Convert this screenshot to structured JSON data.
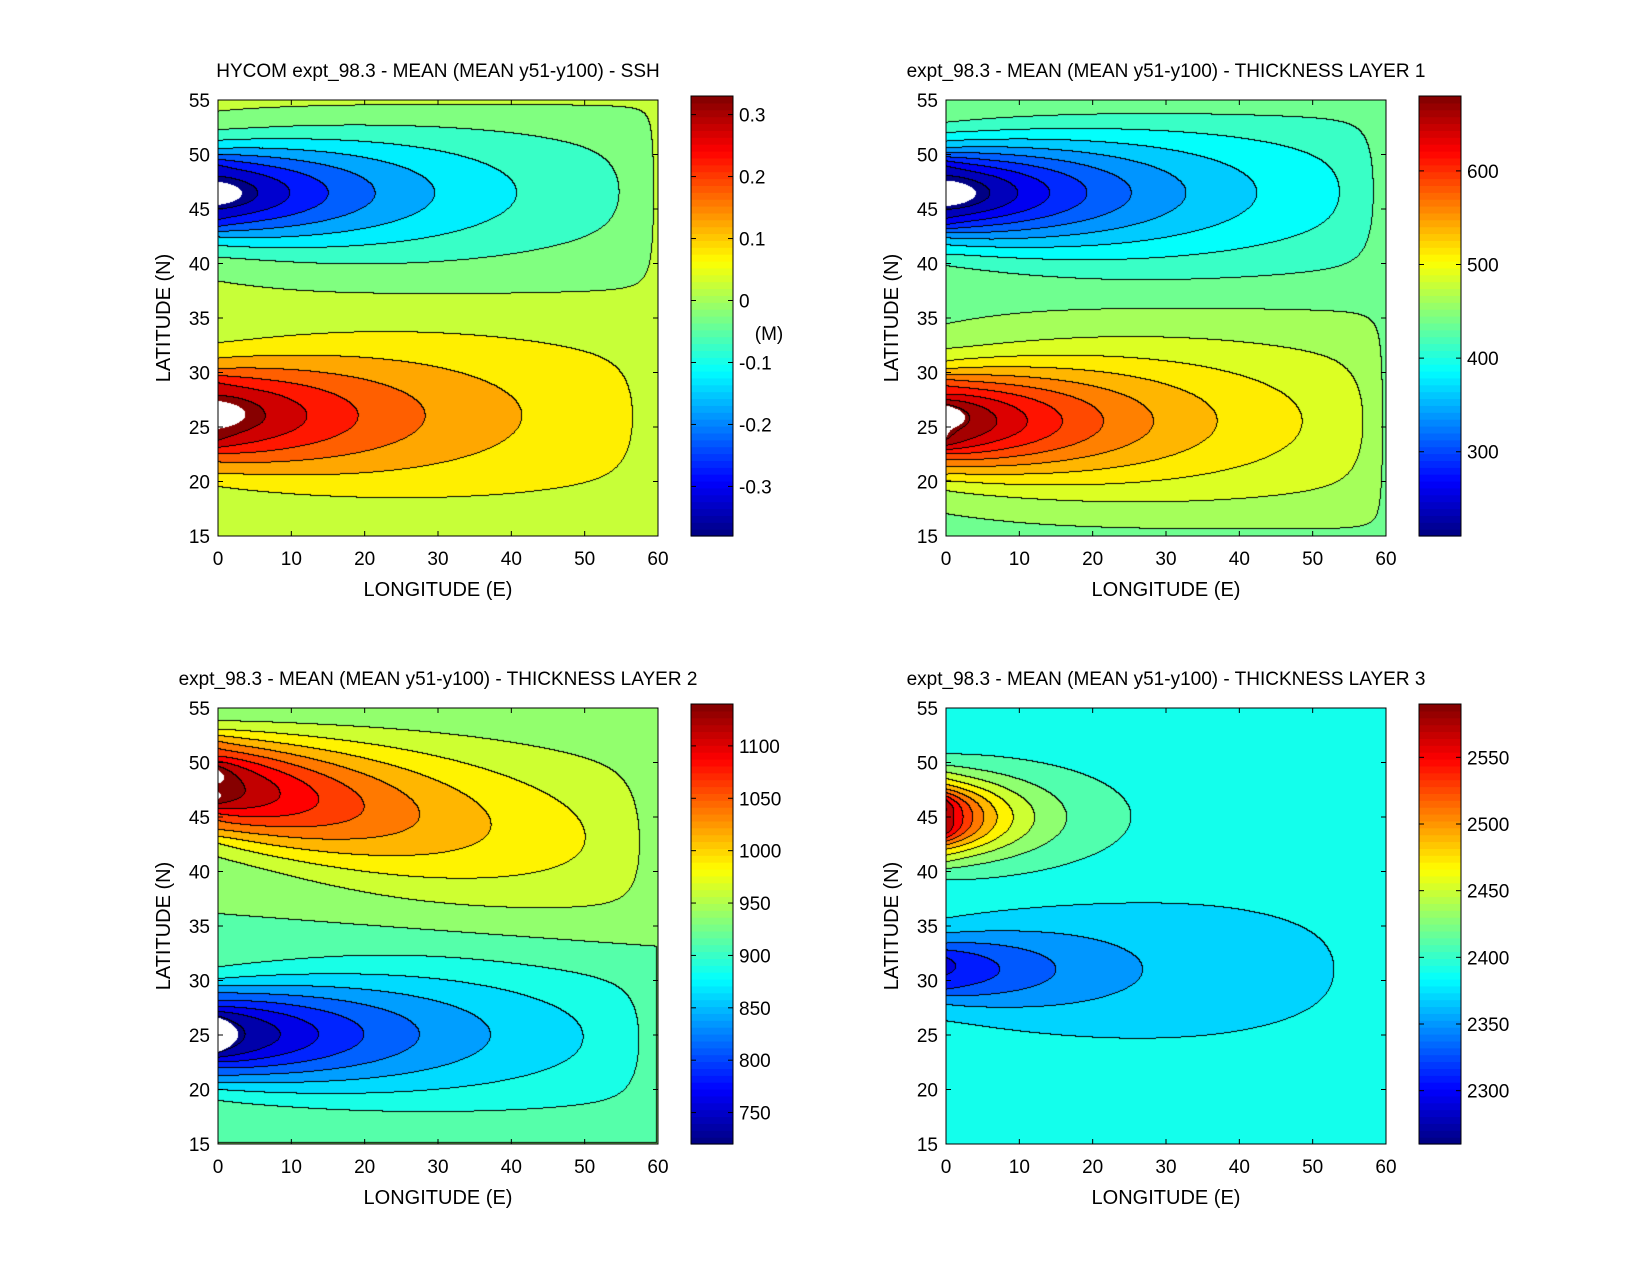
{
  "chart_data": [
    {
      "type": "heatmap",
      "subtype": "filled-contour",
      "title": "HYCOM expt_98.3 - MEAN (MEAN y51-y100) - SSH",
      "xlabel": "LONGITUDE (E)",
      "ylabel": "LATITUDE (N)",
      "xlim": [
        0,
        60
      ],
      "ylim": [
        15,
        55
      ],
      "xticks": [
        "0",
        "10",
        "20",
        "30",
        "40",
        "50",
        "60"
      ],
      "yticks": [
        "15",
        "20",
        "25",
        "30",
        "35",
        "40",
        "45",
        "50",
        "55"
      ],
      "colorbar": {
        "label": "(M)",
        "range": [
          -0.38,
          0.33
        ],
        "ticks": [
          -0.3,
          -0.2,
          -0.1,
          0,
          0.1,
          0.2,
          0.3
        ],
        "tick_labels": [
          "-0.3",
          "-0.2",
          "-0.1",
          "0",
          "0.1",
          "0.2",
          "0.3"
        ]
      },
      "contour_interval": 0.05,
      "field": {
        "background": 0.01,
        "positive_center_lat": 26,
        "positive_amplitude": 0.36,
        "negative_center_lat": 46.5,
        "negative_amplitude": -0.43,
        "east_decay": 30
      }
    },
    {
      "type": "heatmap",
      "subtype": "filled-contour",
      "title": "expt_98.3 - MEAN (MEAN y51-y100) - THICKNESS LAYER 1",
      "xlabel": "LONGITUDE (E)",
      "ylabel": "LATITUDE (N)",
      "xlim": [
        0,
        60
      ],
      "ylim": [
        15,
        55
      ],
      "xticks": [
        "0",
        "10",
        "20",
        "30",
        "40",
        "50",
        "60"
      ],
      "yticks": [
        "15",
        "20",
        "25",
        "30",
        "35",
        "40",
        "45",
        "50",
        "55"
      ],
      "colorbar": {
        "label": "",
        "range": [
          210,
          680
        ],
        "ticks": [
          300,
          400,
          500,
          600
        ],
        "tick_labels": [
          "300",
          "400",
          "500",
          "600"
        ]
      },
      "contour_interval": 25,
      "field": {
        "background": 445,
        "positive_center_lat": 25.5,
        "positive_amplitude": 255,
        "negative_center_lat": 46.5,
        "negative_amplitude": -265,
        "east_decay": 32
      }
    },
    {
      "type": "heatmap",
      "subtype": "filled-contour",
      "title": "expt_98.3 - MEAN (MEAN y51-y100) - THICKNESS LAYER 2",
      "xlabel": "LONGITUDE (E)",
      "ylabel": "LATITUDE (N)",
      "xlim": [
        0,
        60
      ],
      "ylim": [
        15,
        55
      ],
      "xticks": [
        "0",
        "10",
        "20",
        "30",
        "40",
        "50",
        "60"
      ],
      "yticks": [
        "15",
        "20",
        "25",
        "30",
        "35",
        "40",
        "45",
        "50",
        "55"
      ],
      "colorbar": {
        "label": "",
        "range": [
          720,
          1140
        ],
        "ticks": [
          750,
          800,
          850,
          900,
          950,
          1000,
          1050,
          1100
        ],
        "tick_labels": [
          "750",
          "800",
          "850",
          "900",
          "950",
          "1000",
          "1050",
          "1100"
        ]
      },
      "contour_interval": 25,
      "field": {
        "background": 925,
        "positive_center_lat": 48,
        "positive_amplitude": 225,
        "negative_center_lat": 25,
        "negative_amplitude": -225,
        "east_decay": 34
      }
    },
    {
      "type": "heatmap",
      "subtype": "filled-contour",
      "title": "expt_98.3 - MEAN (MEAN y51-y100) - THICKNESS LAYER 3",
      "xlabel": "LONGITUDE (E)",
      "ylabel": "LATITUDE (N)",
      "xlim": [
        0,
        60
      ],
      "ylim": [
        15,
        55
      ],
      "xticks": [
        "0",
        "10",
        "20",
        "30",
        "40",
        "50",
        "60"
      ],
      "yticks": [
        "15",
        "20",
        "25",
        "30",
        "35",
        "40",
        "45",
        "50",
        "55"
      ],
      "colorbar": {
        "label": "",
        "range": [
          2260,
          2590
        ],
        "ticks": [
          2300,
          2350,
          2400,
          2450,
          2500,
          2550
        ],
        "tick_labels": [
          "2300",
          "2350",
          "2400",
          "2450",
          "2500",
          "2550"
        ]
      },
      "contour_interval": 20,
      "field": {
        "background": 2388,
        "positive_center_lat": 45,
        "positive_amplitude": 200,
        "negative_center_lat": 31,
        "negative_amplitude": -95,
        "east_decay": 9
      }
    }
  ]
}
